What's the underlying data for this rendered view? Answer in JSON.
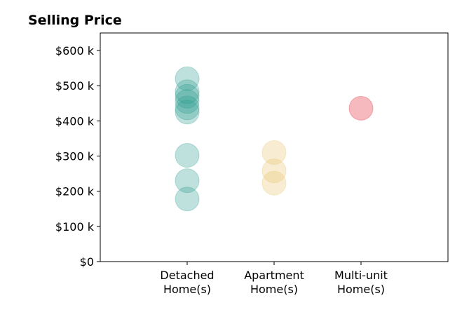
{
  "chart_data": {
    "type": "scatter",
    "title": "Selling Price",
    "xlabel": "",
    "ylabel": "",
    "ylim": [
      0,
      650000
    ],
    "yticks": [
      0,
      100000,
      200000,
      300000,
      400000,
      500000,
      600000
    ],
    "ytick_labels": [
      "$0",
      "$100 k",
      "$200 k",
      "$300 k",
      "$400 k",
      "$500 k",
      "$600 k"
    ],
    "categories": [
      [
        "Detached",
        "Home(s)"
      ],
      [
        "Apartment",
        "Home(s)"
      ],
      [
        "Multi-unit",
        "Home(s)"
      ]
    ],
    "xlim": [
      -1,
      3
    ],
    "grid": false,
    "series": [
      {
        "category_index": 0,
        "color": "#2a9d8f",
        "opacity": 0.3,
        "values": [
          520000,
          483000,
          470000,
          455000,
          437000,
          425000,
          302000,
          230000,
          178000
        ]
      },
      {
        "category_index": 1,
        "color": "#e9c46a",
        "opacity": 0.3,
        "values": [
          310000,
          258000,
          223000
        ]
      },
      {
        "category_index": 2,
        "color": "#e63946",
        "opacity": 0.35,
        "values": [
          436000
        ]
      }
    ]
  }
}
